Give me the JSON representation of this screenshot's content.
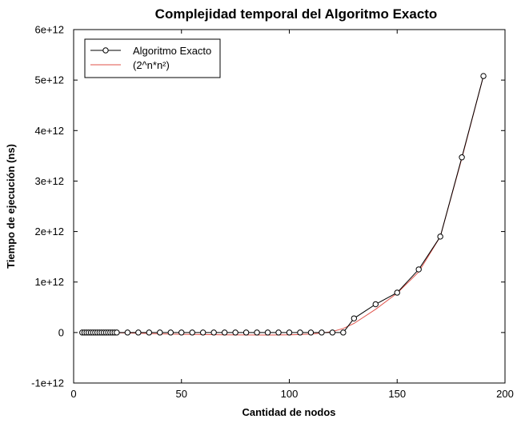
{
  "chart_data": {
    "type": "line",
    "title": "Complejidad temporal del Algoritmo Exacto",
    "xlabel": "Cantidad de nodos",
    "ylabel": "Tiempo de ejecución (ns)",
    "xlim": [
      0,
      200
    ],
    "ylim": [
      -1000000000000.0,
      6000000000000.0
    ],
    "x_ticks": [
      0,
      50,
      100,
      150,
      200
    ],
    "x_tick_labels": [
      "0",
      "50",
      "100",
      "150",
      "200"
    ],
    "y_ticks": [
      -1000000000000.0,
      0,
      1000000000000.0,
      2000000000000.0,
      3000000000000.0,
      4000000000000.0,
      5000000000000.0,
      6000000000000.0
    ],
    "y_tick_labels": [
      "-1e+12",
      "0",
      "1e+12",
      "2e+12",
      "3e+12",
      "4e+12",
      "5e+12",
      "6e+12"
    ],
    "grid": false,
    "legend_position": "top-left",
    "series": [
      {
        "name": "Algoritmo Exacto",
        "color": "#000000",
        "marker": "circle",
        "x": [
          4,
          5,
          6,
          7,
          8,
          9,
          10,
          11,
          12,
          13,
          14,
          15,
          16,
          17,
          18,
          19,
          20,
          25,
          30,
          35,
          40,
          45,
          50,
          55,
          60,
          65,
          70,
          75,
          80,
          85,
          90,
          95,
          100,
          105,
          110,
          115,
          120,
          125,
          130,
          140,
          150,
          160,
          170,
          180,
          190
        ],
        "y": [
          0,
          0,
          0,
          0,
          0,
          0,
          0,
          0,
          0,
          0,
          0,
          0,
          0,
          0,
          0,
          0,
          0,
          0,
          0,
          0,
          0,
          0,
          0,
          0,
          0,
          0,
          0,
          0,
          0,
          0,
          0,
          0,
          0,
          0,
          0,
          0,
          0,
          0,
          280000000000.0,
          560000000000.0,
          790000000000.0,
          1250000000000.0,
          1900000000000.0,
          3470000000000.0,
          5080000000000.0
        ]
      },
      {
        "name": "(2^n*n²)",
        "color": "#e0524a",
        "marker": "none",
        "x": [
          4,
          10,
          20,
          30,
          40,
          50,
          60,
          70,
          80,
          90,
          100,
          105,
          110,
          115,
          120,
          125,
          130,
          140,
          150,
          160,
          170,
          180,
          190
        ],
        "y": [
          0,
          0,
          -5000000000.0,
          -15000000000.0,
          -25000000000.0,
          -35000000000.0,
          -40000000000.0,
          -45000000000.0,
          -48000000000.0,
          -50000000000.0,
          -45000000000.0,
          -40000000000.0,
          -30000000000.0,
          -10000000000.0,
          20000000000.0,
          80000000000.0,
          180000000000.0,
          460000000000.0,
          780000000000.0,
          1200000000000.0,
          1900000000000.0,
          3450000000000.0,
          5080000000000.0
        ]
      }
    ]
  }
}
